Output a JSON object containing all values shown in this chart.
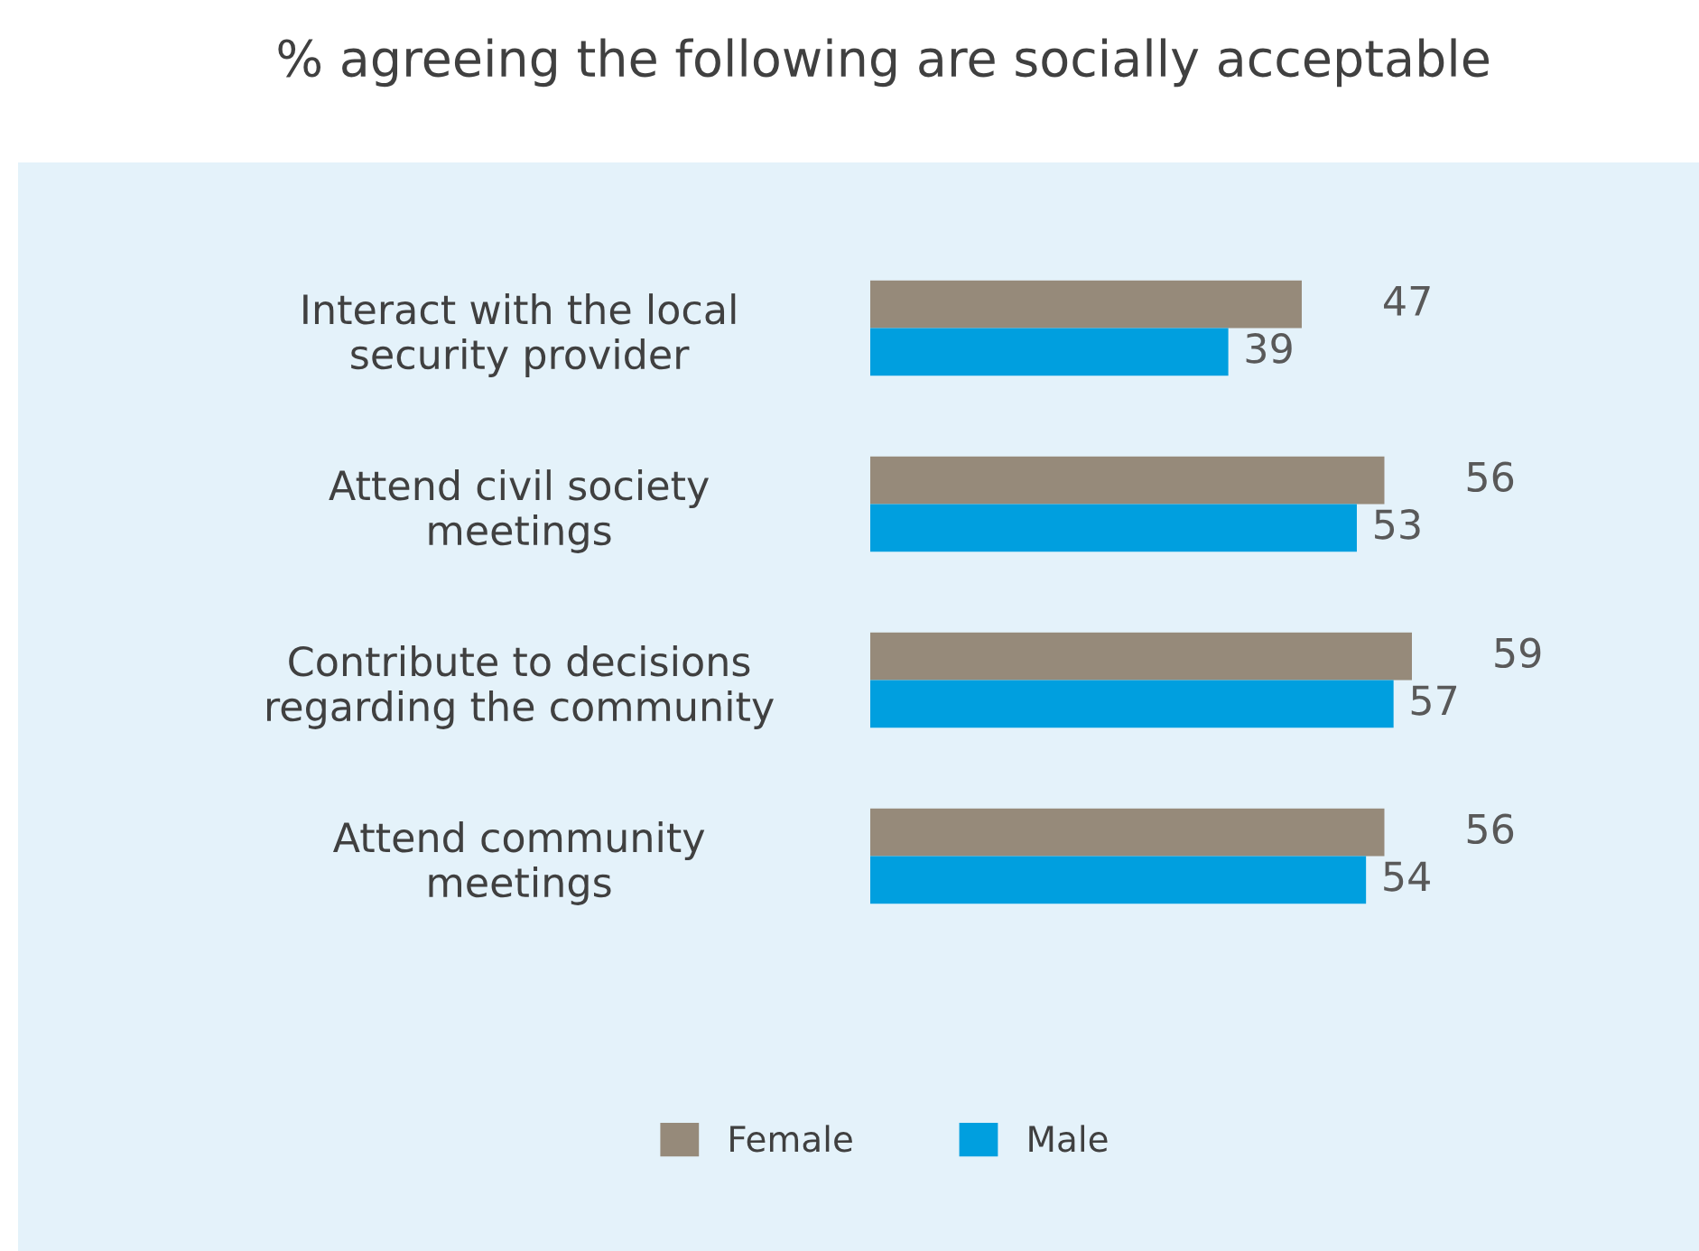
{
  "chart_data": {
    "type": "bar",
    "orientation": "horizontal",
    "title": "% agreeing the following are socially acceptable",
    "categories": [
      "Interact with the local\nsecurity provider",
      "Attend civil society\nmeetings",
      "Contribute to decisions\nregarding the community",
      "Attend community\nmeetings"
    ],
    "series": [
      {
        "name": "Female",
        "color": "#968a7a",
        "values": [
          47,
          56,
          59,
          56
        ]
      },
      {
        "name": "Male",
        "color": "#009fdf",
        "values": [
          39,
          53,
          57,
          54
        ]
      }
    ],
    "data_labels": true,
    "legend": "bottom",
    "grid": false
  }
}
